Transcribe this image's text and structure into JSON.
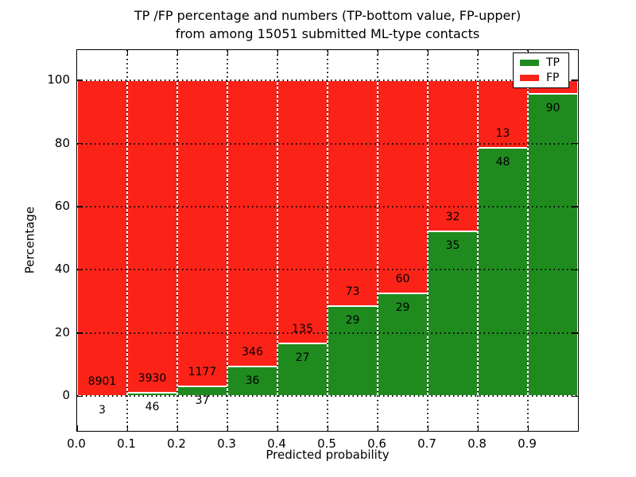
{
  "figure": {
    "title_line1": "TP /FP percentage and numbers (TP-bottom value, FP-upper)",
    "title_line2": "from among 15051 submitted ML-type contacts",
    "background": "#ffffff"
  },
  "chart_data": {
    "type": "bar",
    "stacked": true,
    "title": "TP /FP percentage and numbers (TP-bottom value, FP-upper) from among 15051 submitted ML-type contacts",
    "xlabel": "Predicted probability",
    "ylabel": "Percentage",
    "xlim": [
      0.0,
      1.0
    ],
    "ylim": [
      -11,
      109.6
    ],
    "grid": "dotted",
    "legend_position": "upper-right",
    "total_submitted": 15051,
    "x_tick_labels": [
      "0.0",
      "0.1",
      "0.2",
      "0.3",
      "0.4",
      "0.5",
      "0.6",
      "0.7",
      "0.8",
      "0.9"
    ],
    "y_tick_values": [
      0,
      20,
      40,
      60,
      80,
      100
    ],
    "y_tick_labels": [
      "0",
      "20",
      "40",
      "60",
      "80",
      "100"
    ],
    "categories": [
      "0.0-0.1",
      "0.1-0.2",
      "0.2-0.3",
      "0.3-0.4",
      "0.4-0.5",
      "0.5-0.6",
      "0.6-0.7",
      "0.7-0.8",
      "0.8-0.9",
      "0.9-1.0"
    ],
    "series": [
      {
        "name": "TP",
        "color": "#1f8b1f",
        "counts": [
          3,
          46,
          37,
          36,
          27,
          29,
          29,
          35,
          48,
          90
        ]
      },
      {
        "name": "FP",
        "color": "#fb2318",
        "counts": [
          8901,
          3930,
          1177,
          346,
          135,
          73,
          60,
          32,
          13,
          4
        ]
      }
    ],
    "tp_percent": [
      0.034,
      1.157,
      3.048,
      9.424,
      16.667,
      28.431,
      32.584,
      52.239,
      78.689,
      95.745
    ],
    "annotations": {
      "fp_labels": [
        "8901",
        "3930",
        "1177",
        "346",
        "135",
        "73",
        "60",
        "32",
        "13",
        ""
      ],
      "tp_labels": [
        "3",
        "46",
        "37",
        "36",
        "27",
        "29",
        "29",
        "35",
        "48",
        "90"
      ]
    },
    "legend": [
      {
        "label": "TP",
        "color": "#1f8b1f"
      },
      {
        "label": "FP",
        "color": "#fb2318"
      }
    ]
  }
}
